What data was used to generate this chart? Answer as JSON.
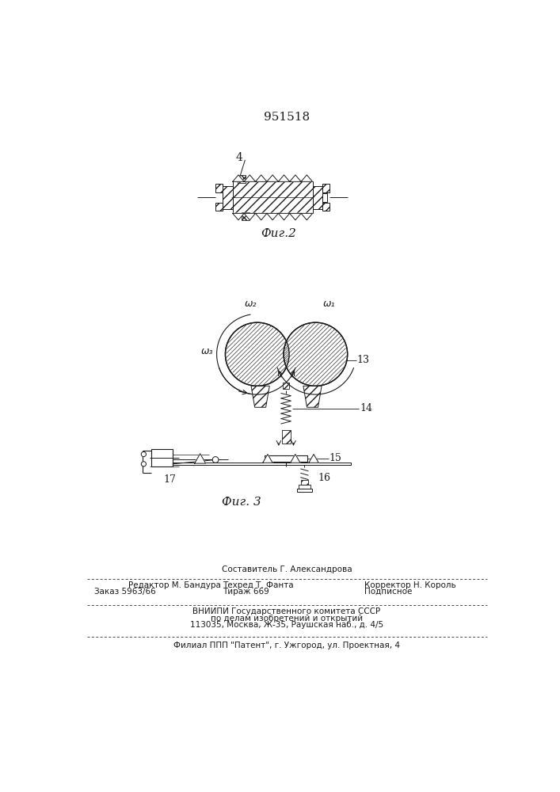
{
  "patent_number": "951518",
  "fig2_label": "Фиг.2",
  "fig3_label": "Фиг. 3",
  "label4": "4",
  "label13": "13",
  "label14": "14",
  "label15": "15",
  "label16": "16",
  "label17": "17",
  "omega1": "ω₁",
  "omega2": "ω₂",
  "omega3": "ω₃",
  "text_sostavitel": "Составитель Г. Александрова",
  "text_redaktor": "Редактор М. Бандура",
  "text_tekhred": "Техред Т. Фанта",
  "text_korrektor": "Корректор Н. Король",
  "text_zakaz": "Заказ 5963/66",
  "text_tirazh": "Тираж 669",
  "text_podpisnoe": "Подписное",
  "text_vniip1": "ВНИИПИ Государственного комитета СССР",
  "text_vniip2": "по делам изобретений и открытий",
  "text_vniip3": "113035, Москва, Ж-35, Раушская наб., д. 4/5",
  "text_filial": "Филиал ППП \"Патент\", г. Ужгород, ул. Проектная, 4",
  "bg_color": "#ffffff",
  "line_color": "#1a1a1a"
}
